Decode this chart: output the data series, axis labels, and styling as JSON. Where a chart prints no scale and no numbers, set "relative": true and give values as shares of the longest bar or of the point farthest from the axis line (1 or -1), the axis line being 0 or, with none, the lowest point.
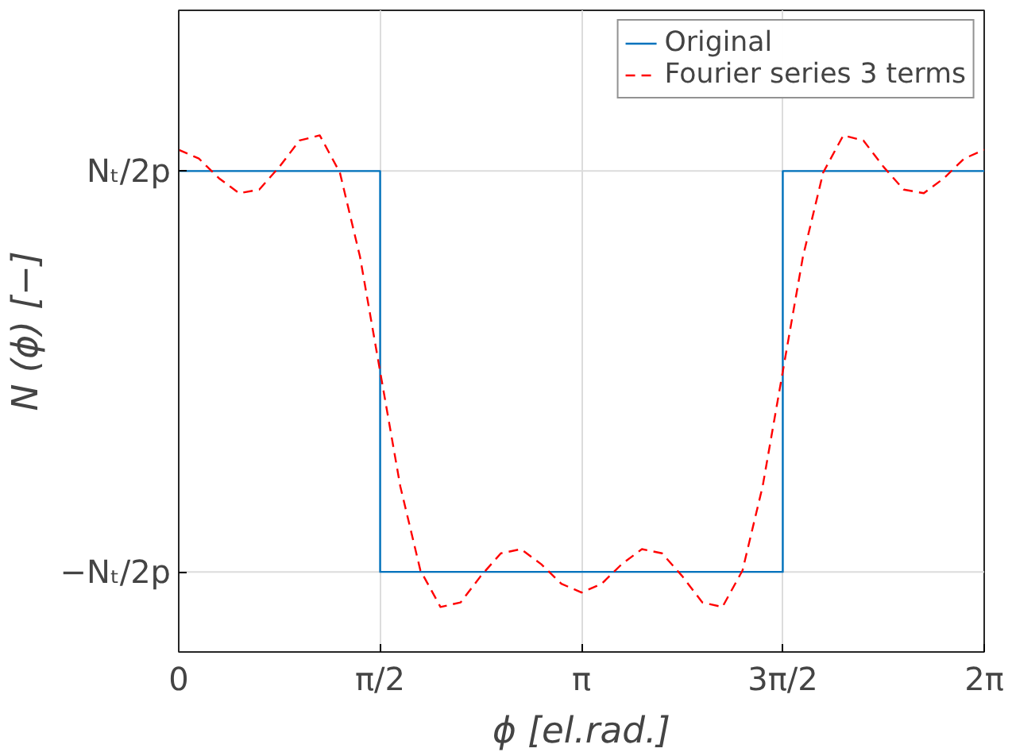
{
  "chart_data": {
    "type": "line",
    "xlabel": "ϕ [el.rad.]",
    "ylabel": "N (ϕ) [−]",
    "relative": true,
    "xlim": [
      0,
      6.283
    ],
    "xticks": [
      0,
      {
        "value": 1.571,
        "label": "π/2"
      },
      {
        "value": 3.142,
        "label": "π"
      },
      {
        "value": 4.712,
        "label": "3π/2"
      },
      {
        "value": 6.283,
        "label": "2π"
      }
    ],
    "ref_lines": [
      {
        "axis": "y",
        "value": 0.155,
        "label": "−Nₜ/2p",
        "color": "#dcdcdc"
      },
      {
        "axis": "y",
        "value": 0.931,
        "label": "Nₜ/2p",
        "color": "#dcdcdc"
      }
    ],
    "grid": "x",
    "legend": "top right",
    "series": [
      {
        "name": "Original",
        "color": "#0072bd",
        "line_style": "solid",
        "x": [
          0,
          1.571,
          1.571,
          4.712,
          4.712,
          6.283
        ],
        "values": [
          0.931,
          0.931,
          0.155,
          0.155,
          0.931,
          0.931
        ]
      },
      {
        "name": "Fourier series 3 terms",
        "color": "#ff0000",
        "line_style": "dashed",
        "x": [
          0,
          0.157,
          0.314,
          0.471,
          0.628,
          0.785,
          0.942,
          1.1,
          1.257,
          1.414,
          1.571,
          1.728,
          1.885,
          2.042,
          2.199,
          2.356,
          2.513,
          2.67,
          2.827,
          2.985,
          3.142,
          3.299,
          3.456,
          3.613,
          3.77,
          3.927,
          4.084,
          4.241,
          4.398,
          4.555,
          4.712,
          4.869,
          5.027,
          5.184,
          5.341,
          5.498,
          5.655,
          5.812,
          5.969,
          6.126,
          6.283
        ],
        "values": [
          0.972,
          0.955,
          0.917,
          0.888,
          0.895,
          0.939,
          0.99,
          1,
          0.928,
          0.765,
          0.543,
          0.321,
          0.158,
          0.087,
          0.096,
          0.147,
          0.191,
          0.199,
          0.17,
          0.132,
          0.115,
          0.132,
          0.17,
          0.199,
          0.191,
          0.147,
          0.096,
          0.087,
          0.158,
          0.321,
          0.543,
          0.765,
          0.928,
          1,
          0.99,
          0.939,
          0.895,
          0.888,
          0.917,
          0.955,
          0.972
        ]
      }
    ]
  }
}
